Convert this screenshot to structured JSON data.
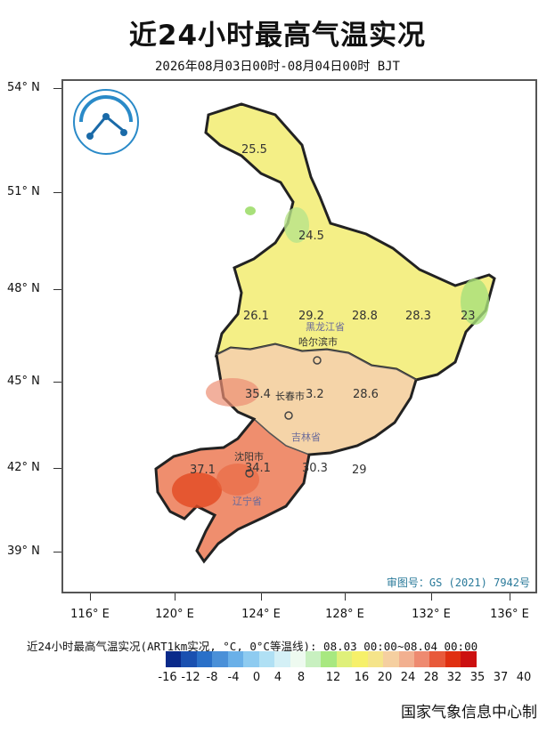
{
  "title": "近24小时最高气温实况",
  "subtitle": "2026年08月03日00时-08月04日00时 BJT",
  "axes": {
    "lat_labels": [
      "54° N",
      "51° N",
      "48° N",
      "45° N",
      "42° N",
      "39° N"
    ],
    "lon_labels": [
      "116° E",
      "120° E",
      "124° E",
      "128° E",
      "132° E",
      "136° E"
    ]
  },
  "map": {
    "provinces": [
      "黑龙江省",
      "吉林省",
      "辽宁省"
    ],
    "cities": [
      "哈尔滨市",
      "长春市",
      "沈阳市"
    ],
    "values": [
      "25.5",
      "24.5",
      "26.1",
      "29.2",
      "28.8",
      "28.3",
      "23",
      "35.4",
      "3.2",
      "28.6",
      "37.1",
      "34.1",
      "30.3",
      "29"
    ],
    "approval": "审图号：GS (2021) 7942号"
  },
  "legend": {
    "caption": "近24小时最高气温实况(ART1km实况, °C, 0°C等温线): 08.03 00:00~08.04 00:00",
    "colors": [
      "#0a2a8a",
      "#1a50b0",
      "#2a70c8",
      "#4a90d8",
      "#6ab0e8",
      "#8ecbf0",
      "#b0e0f4",
      "#d4f0f6",
      "#eefaf0",
      "#c8f0c0",
      "#a8e880",
      "#dff07a",
      "#f6f06a",
      "#f5e48a",
      "#f5cfa0",
      "#f2b090",
      "#ee8a70",
      "#e85a3a",
      "#e03010",
      "#cc1010"
    ],
    "tick_labels": [
      "-16",
      "-12",
      "-8",
      "-4",
      "0",
      "4",
      "8",
      "12",
      "16",
      "20",
      "24",
      "28",
      "32",
      "35",
      "37",
      "40"
    ]
  },
  "credit": "国家气象信息中心制"
}
